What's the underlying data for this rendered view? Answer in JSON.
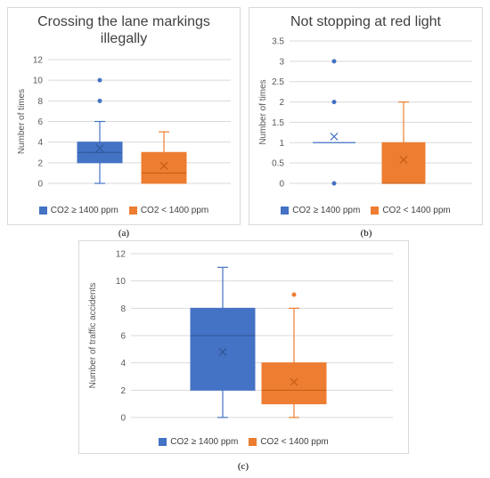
{
  "colors": {
    "blue": "#4472C4",
    "orange": "#ED7D31",
    "grid": "#d9d9d9",
    "text": "#595959"
  },
  "chart_data": [
    {
      "type": "box",
      "panel_caption": "(a)",
      "title": "Crossing the lane markings illegally",
      "title_lines": [
        "Crossing the lane markings",
        "illegally"
      ],
      "ylabel": "Number of times",
      "ylim": [
        0,
        12
      ],
      "yticks": [
        0,
        2,
        4,
        6,
        8,
        10,
        12
      ],
      "ytick_labels": [
        "0",
        "2",
        "4",
        "6",
        "8",
        "10",
        "12"
      ],
      "grid": true,
      "legend_position": "bottom",
      "series": [
        {
          "name": "CO2 ≥ 1400 ppm",
          "color": "#4472C4",
          "min": 0,
          "q1": 2,
          "median": 3,
          "q3": 4,
          "max": 6,
          "mean": 3.4,
          "outliers": [
            8,
            10
          ]
        },
        {
          "name": "CO2 < 1400 ppm",
          "color": "#ED7D31",
          "min": 0,
          "q1": 0,
          "median": 1,
          "q3": 3,
          "max": 5,
          "mean": 1.7,
          "outliers": []
        }
      ]
    },
    {
      "type": "box",
      "panel_caption": "(b)",
      "title": "Not stopping at red light",
      "title_lines": [
        "Not stopping at red light"
      ],
      "ylabel": "Number of times",
      "ylim": [
        0,
        3.5
      ],
      "yticks": [
        0,
        0.5,
        1,
        1.5,
        2,
        2.5,
        3,
        3.5
      ],
      "ytick_labels": [
        "0",
        "0.5",
        "1",
        "1.5",
        "2",
        "2.5",
        "3",
        "3.5"
      ],
      "grid": true,
      "legend_position": "bottom",
      "series": [
        {
          "name": "CO2 ≥ 1400 ppm",
          "color": "#4472C4",
          "min": 1,
          "q1": 1,
          "median": 1,
          "q3": 1,
          "max": 1,
          "mean": 1.15,
          "outliers": [
            0,
            2,
            3
          ]
        },
        {
          "name": "CO2 < 1400 ppm",
          "color": "#ED7D31",
          "min": 0,
          "q1": 0,
          "median": 0,
          "q3": 1,
          "max": 2,
          "mean": 0.58,
          "outliers": []
        }
      ]
    },
    {
      "type": "box",
      "panel_caption": "(c)",
      "title": "",
      "title_lines": [],
      "ylabel": "Number of traffic accidents",
      "ylim": [
        0,
        12
      ],
      "yticks": [
        0,
        2,
        4,
        6,
        8,
        10,
        12
      ],
      "ytick_labels": [
        "0",
        "2",
        "4",
        "6",
        "8",
        "10",
        "12"
      ],
      "grid": true,
      "legend_position": "bottom",
      "series": [
        {
          "name": "CO2 ≥ 1400 ppm",
          "color": "#4472C4",
          "min": 0,
          "q1": 2,
          "median": 6,
          "q3": 8,
          "max": 11,
          "mean": 4.8,
          "outliers": []
        },
        {
          "name": "CO2 < 1400 ppm",
          "color": "#ED7D31",
          "min": 0,
          "q1": 1,
          "median": 2,
          "q3": 4,
          "max": 8,
          "mean": 2.6,
          "outliers": [
            9
          ]
        }
      ]
    }
  ]
}
